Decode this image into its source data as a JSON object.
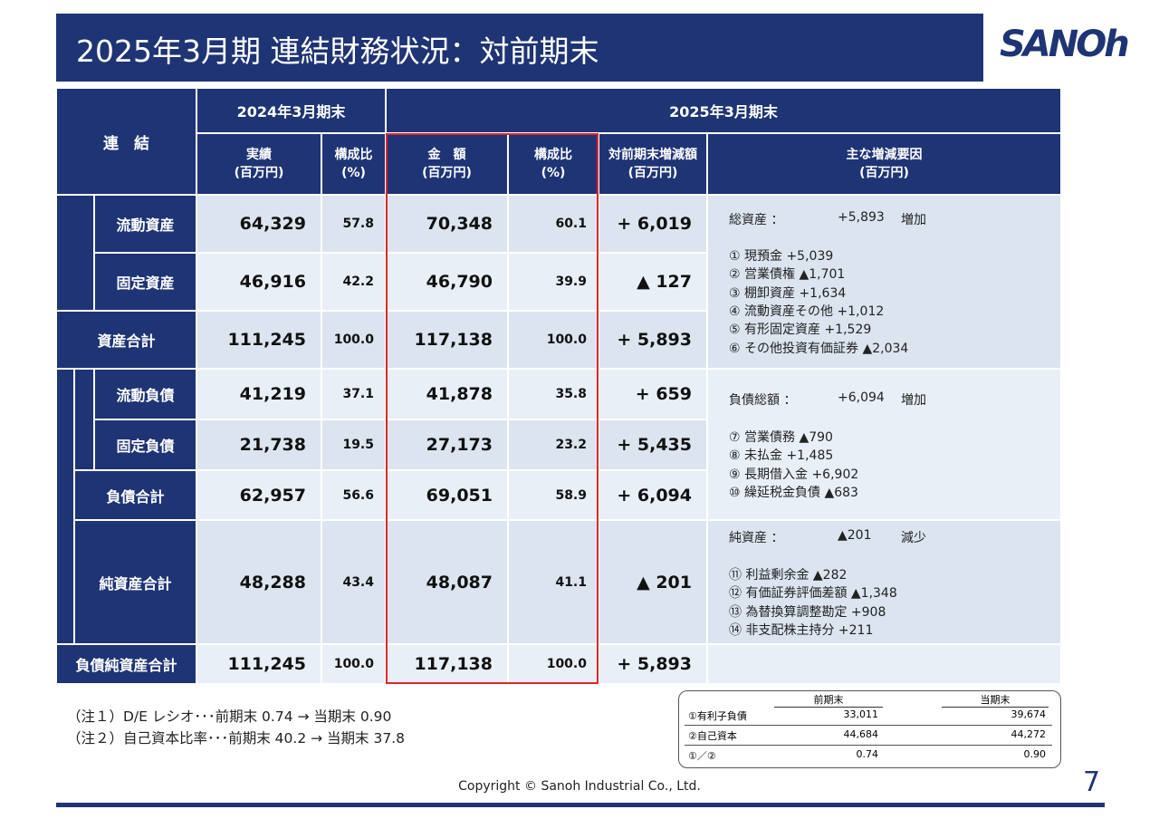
{
  "header": {
    "title": "2025年3月期 連結財務状況：対前期末",
    "logo": "SANOh"
  },
  "table": {
    "corner": "連　結",
    "period_prev": "2024年3月期末",
    "period_curr": "2025年3月期末",
    "columns": [
      {
        "label": "実績",
        "unit": "(百万円)"
      },
      {
        "label": "構成比",
        "unit": "(%)"
      },
      {
        "label": "金　額",
        "unit": "(百万円)"
      },
      {
        "label": "構成比",
        "unit": "(%)"
      },
      {
        "label": "対前期末増減額",
        "unit": "(百万円)"
      },
      {
        "label": "主な増減要因",
        "unit": "(百万円)"
      }
    ],
    "rows": [
      {
        "label": "流動資産",
        "values": [
          "64,329",
          "57.8",
          "70,348",
          "60.1",
          "+ 6,019"
        ]
      },
      {
        "label": "固定資産",
        "values": [
          "46,916",
          "42.2",
          "46,790",
          "39.9",
          "▲ 127"
        ]
      },
      {
        "label": "資産合計",
        "values": [
          "111,245",
          "100.0",
          "117,138",
          "100.0",
          "+ 5,893"
        ]
      },
      {
        "label": "流動負債",
        "values": [
          "41,219",
          "37.1",
          "41,878",
          "35.8",
          "+ 659"
        ]
      },
      {
        "label": "固定負債",
        "values": [
          "21,738",
          "19.5",
          "27,173",
          "23.2",
          "+ 5,435"
        ]
      },
      {
        "label": "負債合計",
        "values": [
          "62,957",
          "56.6",
          "69,051",
          "58.9",
          "+ 6,094"
        ]
      },
      {
        "label": "純資産合計",
        "values": [
          "48,288",
          "43.4",
          "48,087",
          "41.1",
          "▲ 201"
        ]
      },
      {
        "label": "負債純資産合計",
        "values": [
          "111,245",
          "100.0",
          "117,138",
          "100.0",
          "+ 5,893"
        ]
      }
    ],
    "notes": [
      {
        "label": "総資産 ：",
        "value": "+5,893",
        "change": "増加",
        "items": [
          "① 現預金 +5,039",
          "② 営業債権 ▲1,701",
          "③ 棚卸資産 +1,634",
          "④ 流動資産その他 +1,012",
          "⑤ 有形固定資産 +1,529",
          "⑥ その他投資有価証券 ▲2,034"
        ]
      },
      {
        "label": "負債総額 ：",
        "value": "+6,094",
        "change": "増加",
        "items": [
          "⑦ 営業債務 ▲790",
          "⑧ 未払金 +1,485",
          "⑨ 長期借入金 +6,902",
          "⑩ 繰延税金負債 ▲683"
        ]
      },
      {
        "label": "純資産 ：",
        "value": "▲201",
        "change": "減少",
        "items": [
          "⑪ 利益剰余金 ▲282",
          "⑫ 有価証券評価差額 ▲1,348",
          "⑬ 為替換算調整勘定 +908",
          "⑭ 非支配株主持分 +211"
        ]
      }
    ]
  },
  "footnotes": [
    "（注１）D/E レシオ･･･前期末 0.74 → 当期末 0.90",
    "（注２）自己資本比率･･･前期末 40.2 → 当期末 37.8"
  ],
  "de_table": {
    "headers": [
      "前期末",
      "当期末"
    ],
    "rows": [
      [
        "①有利子負債",
        "33,011",
        "39,674"
      ],
      [
        "②自己資本",
        "44,684",
        "44,272"
      ],
      [
        "①／②",
        "0.74",
        "0.90"
      ]
    ]
  },
  "footer": {
    "copyright": "Copyright © Sanoh Industrial Co., Ltd.",
    "page": "7"
  }
}
